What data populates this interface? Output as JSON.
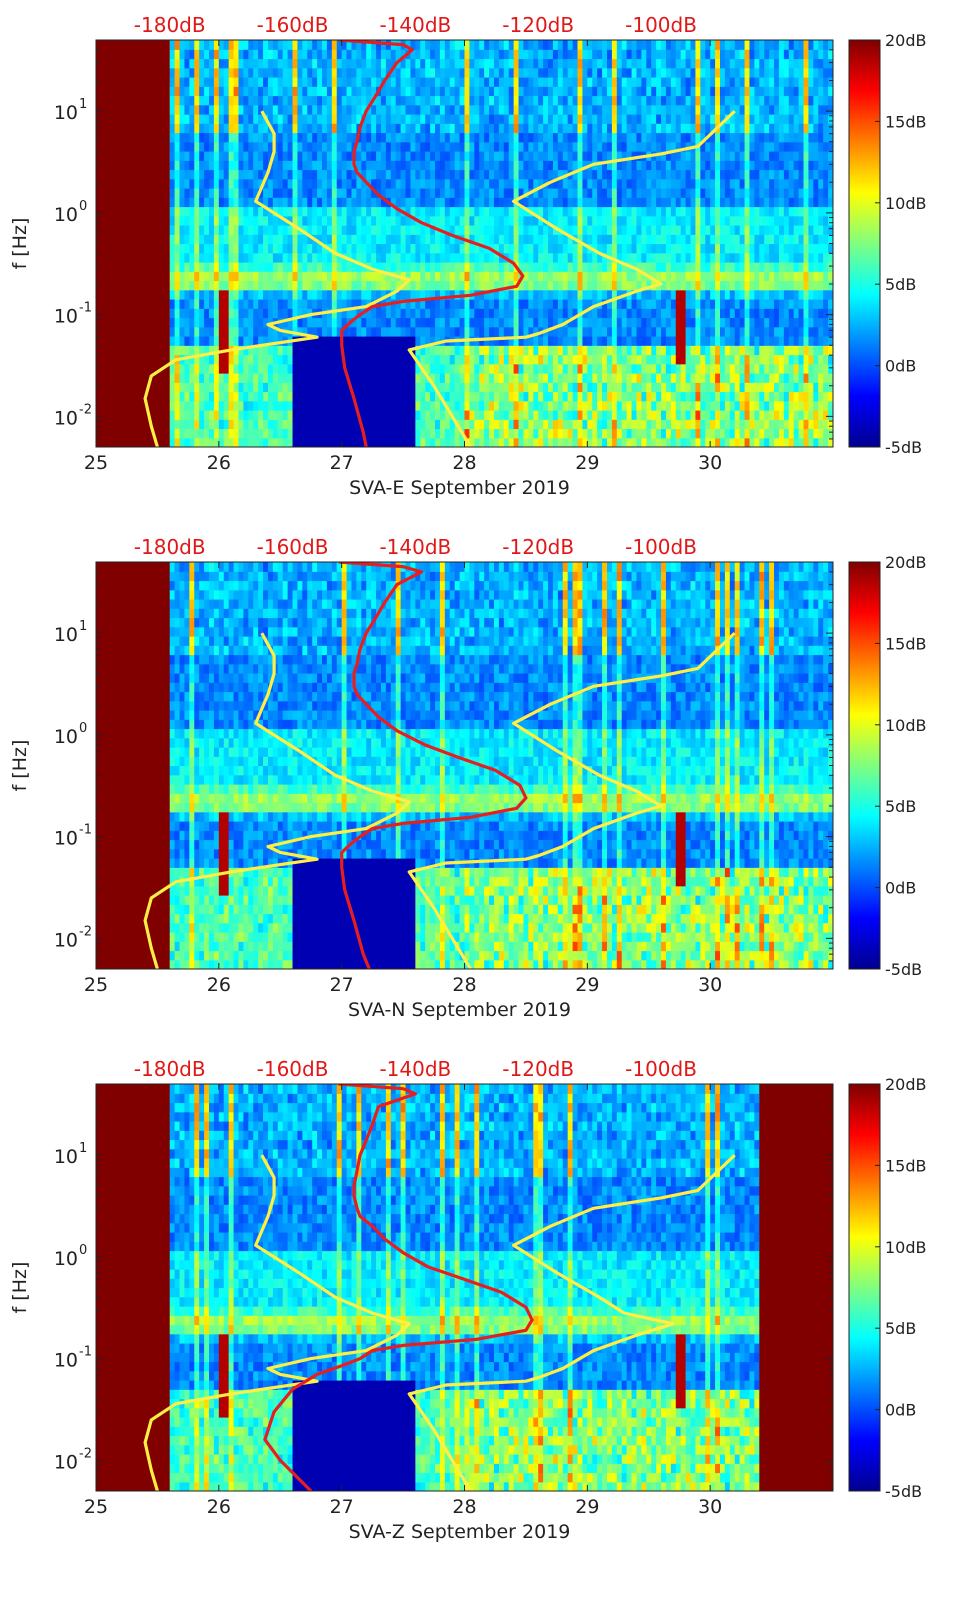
{
  "chart_data": [
    {
      "type": "heatmap",
      "xlabel": "SVA-E September 2019",
      "ylabel": "f [Hz]",
      "xlim": [
        25,
        31
      ],
      "ylim": [
        0.005,
        50
      ],
      "y_scale": "log",
      "x_ticks": [
        "25",
        "26",
        "27",
        "28",
        "29",
        "30"
      ],
      "y_ticks": [
        "10",
        "10",
        "10",
        "10"
      ],
      "y_tick_exponents": [
        "1",
        "0",
        "-1",
        "-2"
      ],
      "top_ticks": [
        "-180dB",
        "-160dB",
        "-140dB",
        "-120dB",
        "-100dB"
      ],
      "colorbar_ticks": [
        "20dB",
        "15dB",
        "10dB",
        "5dB",
        "0dB",
        "-5dB"
      ],
      "color_range": [
        -5,
        20
      ],
      "colormap": "jet",
      "no_data_days": [
        [
          25,
          25.6
        ]
      ],
      "red_curve": {
        "color": "#e81e1e",
        "points": [
          [
            -152.5,
            50
          ],
          [
            -142,
            45
          ],
          [
            -140.5,
            40
          ],
          [
            -143,
            30
          ],
          [
            -145,
            20
          ],
          [
            -146.5,
            14
          ],
          [
            -148,
            10
          ],
          [
            -149,
            7
          ],
          [
            -149.5,
            5
          ],
          [
            -150,
            4
          ],
          [
            -150,
            3
          ],
          [
            -149.5,
            2.5
          ],
          [
            -148,
            2
          ],
          [
            -146,
            1.5
          ],
          [
            -143,
            1.1
          ],
          [
            -139,
            0.8
          ],
          [
            -134,
            0.6
          ],
          [
            -128,
            0.45
          ],
          [
            -124,
            0.32
          ],
          [
            -122.5,
            0.24
          ],
          [
            -123.5,
            0.19
          ],
          [
            -131,
            0.155
          ],
          [
            -142,
            0.135
          ],
          [
            -147,
            0.12
          ],
          [
            -149,
            0.1
          ],
          [
            -150.5,
            0.085
          ],
          [
            -152,
            0.07
          ],
          [
            -152,
            0.05
          ],
          [
            -151.5,
            0.03
          ],
          [
            -150,
            0.015
          ],
          [
            -148.5,
            0.007
          ],
          [
            -148,
            0.005
          ]
        ]
      },
      "yellow_curves": [
        {
          "color": "#ffee44",
          "points": [
            [
              -182,
              0.005
            ],
            [
              -183,
              0.008
            ],
            [
              -184,
              0.015
            ],
            [
              -183,
              0.025
            ],
            [
              -179,
              0.036
            ],
            [
              -170,
              0.045
            ],
            [
              -156,
              0.06
            ],
            [
              -162,
              0.07
            ],
            [
              -164,
              0.08
            ],
            [
              -157,
              0.1
            ],
            [
              -148,
              0.12
            ],
            [
              -143,
              0.17
            ],
            [
              -141,
              0.22
            ],
            [
              -147,
              0.28
            ],
            [
              -153,
              0.4
            ],
            [
              -159,
              0.7
            ],
            [
              -166,
              1.3
            ],
            [
              -164,
              2.5
            ],
            [
              -163,
              4
            ],
            [
              -163,
              6
            ],
            [
              -165,
              10
            ]
          ]
        },
        {
          "color": "#ffee44",
          "points": [
            [
              -131,
              0.005
            ],
            [
              -137,
              0.02
            ],
            [
              -141,
              0.045
            ],
            [
              -135,
              0.055
            ],
            [
              -122,
              0.06
            ],
            [
              -120,
              0.065
            ],
            [
              -116,
              0.08
            ],
            [
              -111,
              0.12
            ],
            [
              -104,
              0.17
            ],
            [
              -100,
              0.2
            ],
            [
              -104,
              0.28
            ],
            [
              -110,
              0.4
            ],
            [
              -117,
              0.7
            ],
            [
              -124,
              1.3
            ],
            [
              -118,
              2
            ],
            [
              -111,
              3
            ],
            [
              -100,
              3.8
            ],
            [
              -94,
              4.5
            ],
            [
              -88,
              10
            ]
          ]
        }
      ]
    },
    {
      "type": "heatmap",
      "xlabel": "SVA-N September 2019",
      "ylabel": "f [Hz]",
      "xlim": [
        25,
        31
      ],
      "ylim": [
        0.005,
        50
      ],
      "y_scale": "log",
      "x_ticks": [
        "25",
        "26",
        "27",
        "28",
        "29",
        "30"
      ],
      "y_ticks": [
        "10",
        "10",
        "10",
        "10"
      ],
      "y_tick_exponents": [
        "1",
        "0",
        "-1",
        "-2"
      ],
      "top_ticks": [
        "-180dB",
        "-160dB",
        "-140dB",
        "-120dB",
        "-100dB"
      ],
      "colorbar_ticks": [
        "20dB",
        "15dB",
        "10dB",
        "5dB",
        "0dB",
        "-5dB"
      ],
      "color_range": [
        -5,
        20
      ],
      "colormap": "jet",
      "no_data_days": [
        [
          25,
          25.6
        ]
      ],
      "red_curve": {
        "color": "#e81e1e",
        "points": [
          [
            -152.5,
            50
          ],
          [
            -142,
            45
          ],
          [
            -139,
            40
          ],
          [
            -143,
            30
          ],
          [
            -145,
            20
          ],
          [
            -146.5,
            14
          ],
          [
            -148,
            10
          ],
          [
            -149,
            7
          ],
          [
            -149.5,
            5
          ],
          [
            -150,
            4
          ],
          [
            -150,
            3
          ],
          [
            -149.5,
            2.5
          ],
          [
            -148,
            2
          ],
          [
            -146,
            1.5
          ],
          [
            -143,
            1.1
          ],
          [
            -138.5,
            0.8
          ],
          [
            -133,
            0.6
          ],
          [
            -127,
            0.45
          ],
          [
            -123,
            0.32
          ],
          [
            -122,
            0.24
          ],
          [
            -123.5,
            0.19
          ],
          [
            -131,
            0.155
          ],
          [
            -142,
            0.135
          ],
          [
            -147,
            0.12
          ],
          [
            -149,
            0.1
          ],
          [
            -150.5,
            0.085
          ],
          [
            -152,
            0.07
          ],
          [
            -152,
            0.05
          ],
          [
            -151.5,
            0.03
          ],
          [
            -150,
            0.015
          ],
          [
            -148.5,
            0.007
          ],
          [
            -147.5,
            0.005
          ]
        ]
      },
      "yellow_curves": [
        {
          "color": "#ffee44",
          "points": [
            [
              -182,
              0.005
            ],
            [
              -183,
              0.008
            ],
            [
              -184,
              0.015
            ],
            [
              -183,
              0.025
            ],
            [
              -179,
              0.036
            ],
            [
              -170,
              0.045
            ],
            [
              -156,
              0.06
            ],
            [
              -162,
              0.07
            ],
            [
              -164,
              0.08
            ],
            [
              -157,
              0.1
            ],
            [
              -148,
              0.12
            ],
            [
              -143,
              0.17
            ],
            [
              -141,
              0.22
            ],
            [
              -147,
              0.28
            ],
            [
              -153,
              0.4
            ],
            [
              -159,
              0.7
            ],
            [
              -166,
              1.3
            ],
            [
              -164,
              2.5
            ],
            [
              -163,
              4
            ],
            [
              -163,
              6
            ],
            [
              -165,
              10
            ]
          ]
        },
        {
          "color": "#ffee44",
          "points": [
            [
              -131,
              0.005
            ],
            [
              -137,
              0.02
            ],
            [
              -141,
              0.045
            ],
            [
              -135,
              0.055
            ],
            [
              -122,
              0.06
            ],
            [
              -120,
              0.065
            ],
            [
              -116,
              0.08
            ],
            [
              -111,
              0.12
            ],
            [
              -104,
              0.17
            ],
            [
              -100,
              0.2
            ],
            [
              -104,
              0.28
            ],
            [
              -110,
              0.4
            ],
            [
              -117,
              0.7
            ],
            [
              -124,
              1.3
            ],
            [
              -118,
              2
            ],
            [
              -111,
              3
            ],
            [
              -100,
              3.8
            ],
            [
              -94,
              4.5
            ],
            [
              -88,
              10
            ]
          ]
        }
      ]
    },
    {
      "type": "heatmap",
      "xlabel": "SVA-Z September 2019",
      "ylabel": "f [Hz]",
      "xlim": [
        25,
        31
      ],
      "ylim": [
        0.005,
        50
      ],
      "y_scale": "log",
      "x_ticks": [
        "25",
        "26",
        "27",
        "28",
        "29",
        "30"
      ],
      "y_ticks": [
        "10",
        "10",
        "10",
        "10"
      ],
      "y_tick_exponents": [
        "1",
        "0",
        "-1",
        "-2"
      ],
      "top_ticks": [
        "-180dB",
        "-160dB",
        "-140dB",
        "-120dB",
        "-100dB"
      ],
      "colorbar_ticks": [
        "20dB",
        "15dB",
        "10dB",
        "5dB",
        "0dB",
        "-5dB"
      ],
      "color_range": [
        -5,
        20
      ],
      "colormap": "jet",
      "no_data_days": [
        [
          25,
          25.6
        ],
        [
          30.4,
          31
        ]
      ],
      "red_curve": {
        "color": "#e81e1e",
        "points": [
          [
            -152.5,
            50
          ],
          [
            -142,
            45
          ],
          [
            -140,
            40
          ],
          [
            -146,
            30
          ],
          [
            -147,
            20
          ],
          [
            -148,
            14
          ],
          [
            -149,
            10
          ],
          [
            -149.5,
            7
          ],
          [
            -150,
            5
          ],
          [
            -150,
            4
          ],
          [
            -149.5,
            3
          ],
          [
            -149,
            2.5
          ],
          [
            -147,
            2
          ],
          [
            -145,
            1.5
          ],
          [
            -142,
            1.1
          ],
          [
            -138,
            0.8
          ],
          [
            -132,
            0.6
          ],
          [
            -126,
            0.45
          ],
          [
            -122,
            0.32
          ],
          [
            -121,
            0.24
          ],
          [
            -122,
            0.19
          ],
          [
            -130,
            0.155
          ],
          [
            -142,
            0.135
          ],
          [
            -147,
            0.12
          ],
          [
            -149,
            0.1
          ],
          [
            -152,
            0.085
          ],
          [
            -156,
            0.07
          ],
          [
            -160,
            0.05
          ],
          [
            -163,
            0.03
          ],
          [
            -164.5,
            0.016
          ],
          [
            -162,
            0.01
          ],
          [
            -157,
            0.005
          ]
        ]
      },
      "yellow_curves": [
        {
          "color": "#ffee44",
          "points": [
            [
              -182,
              0.005
            ],
            [
              -183,
              0.008
            ],
            [
              -184,
              0.015
            ],
            [
              -183,
              0.025
            ],
            [
              -179,
              0.036
            ],
            [
              -170,
              0.045
            ],
            [
              -156,
              0.06
            ],
            [
              -162,
              0.07
            ],
            [
              -164,
              0.08
            ],
            [
              -157,
              0.1
            ],
            [
              -148,
              0.12
            ],
            [
              -143,
              0.17
            ],
            [
              -141,
              0.22
            ],
            [
              -147,
              0.28
            ],
            [
              -153,
              0.4
            ],
            [
              -159,
              0.7
            ],
            [
              -166,
              1.3
            ],
            [
              -164,
              2.5
            ],
            [
              -163,
              4
            ],
            [
              -163,
              6
            ],
            [
              -165,
              10
            ]
          ]
        },
        {
          "color": "#ffee44",
          "points": [
            [
              -131,
              0.005
            ],
            [
              -137,
              0.02
            ],
            [
              -141,
              0.045
            ],
            [
              -135,
              0.055
            ],
            [
              -122,
              0.06
            ],
            [
              -120,
              0.065
            ],
            [
              -116,
              0.08
            ],
            [
              -111,
              0.12
            ],
            [
              -104,
              0.17
            ],
            [
              -98,
              0.22
            ],
            [
              -106,
              0.28
            ],
            [
              -110,
              0.4
            ],
            [
              -117,
              0.7
            ],
            [
              -124,
              1.3
            ],
            [
              -118,
              2
            ],
            [
              -111,
              3
            ],
            [
              -100,
              3.8
            ],
            [
              -94,
              4.5
            ],
            [
              -88,
              10
            ]
          ]
        }
      ]
    }
  ]
}
